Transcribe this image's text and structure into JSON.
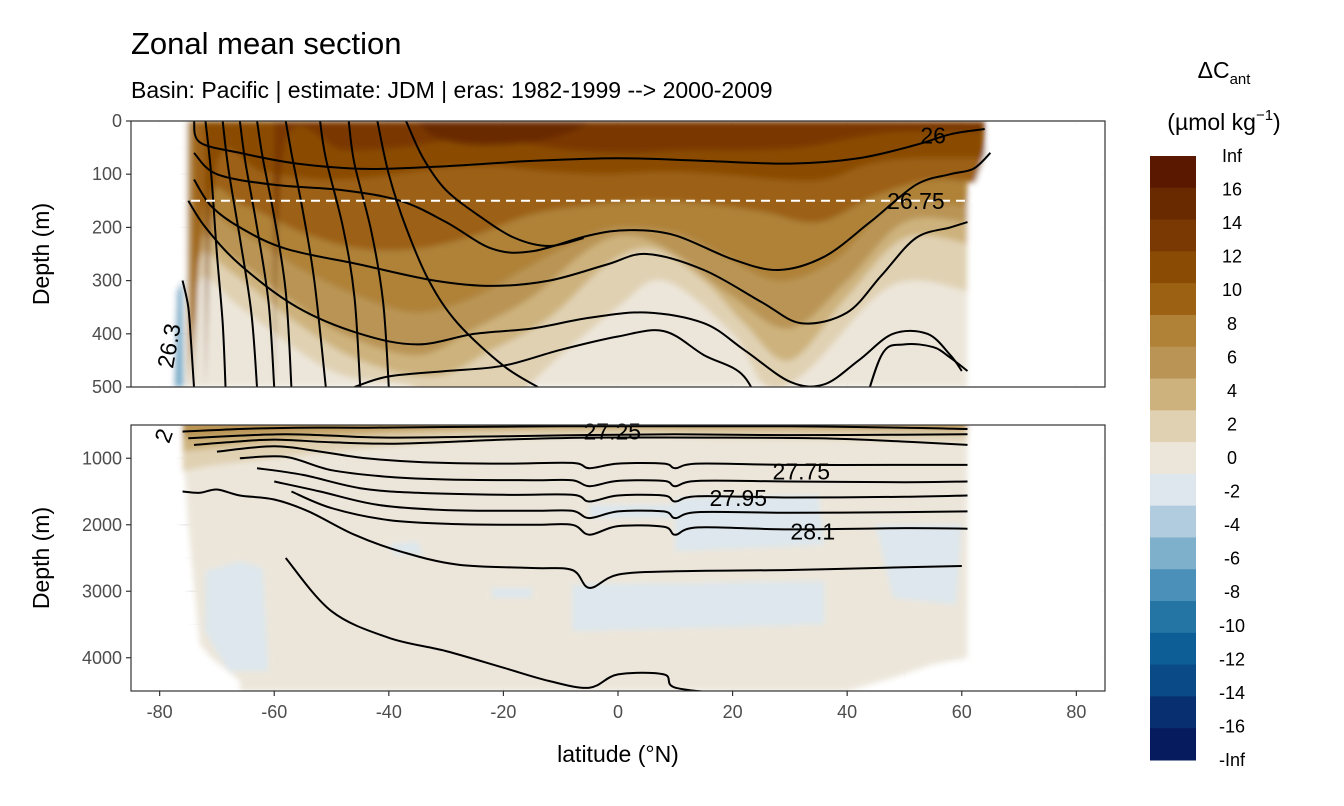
{
  "colors": {
    "pos": [
      "#ece6da",
      "#e0d1b2",
      "#cdb27d",
      "#b99454",
      "#af8237",
      "#9c6112",
      "#8a4c05",
      "#7a3802",
      "#6a2a00",
      "#5a1800"
    ],
    "neg": [
      "#dde7ed",
      "#b1ccdf",
      "#7fb0cb",
      "#4b90b8",
      "#2475a4",
      "#0d5d97",
      "#0a4a86",
      "#082f70",
      "#061b5e"
    ]
  },
  "chart_data": {
    "type": "heatmap",
    "title": "Zonal mean section",
    "subtitle": "Basin: Pacific | estimate: JDM  | eras: 1982-1999 --> 2000-2009",
    "xlabel": "latitude (°N)",
    "x_ticks": [
      "-80",
      "-60",
      "-40",
      "-20",
      "0",
      "20",
      "40",
      "60",
      "80"
    ],
    "xlim": [
      -85,
      85
    ],
    "upper_panel": {
      "ylabel": "Depth (m)",
      "ylim": [
        500,
        0
      ],
      "y_ticks": [
        "0",
        "100",
        "200",
        "300",
        "400",
        "500"
      ]
    },
    "lower_panel": {
      "ylabel": "Depth (m)",
      "ylim": [
        4500,
        500
      ],
      "y_ticks": [
        "1000",
        "2000",
        "3000",
        "4000"
      ]
    },
    "reference_depth": 150,
    "data_extent": {
      "lat_min": -78,
      "lat_max": 65
    },
    "legend": {
      "title_main": "ΔC",
      "title_sub": "ant",
      "units_pre": "(µmol kg",
      "units_sup": "−1",
      "units_post": ")",
      "labels": [
        "Inf",
        "16",
        "14",
        "12",
        "10",
        "8",
        "6",
        "4",
        "2",
        "0",
        "-2",
        "-4",
        "-6",
        "-8",
        "-10",
        "-12",
        "-14",
        "-16",
        "-Inf"
      ],
      "breaks": [
        16,
        14,
        12,
        10,
        8,
        6,
        4,
        2,
        0,
        -2,
        -4,
        -6,
        -8,
        -10,
        -12,
        -14,
        -16
      ]
    },
    "isopycnal_labels": [
      {
        "text": "26",
        "lat": 55,
        "depth": 27
      },
      {
        "text": "26.75",
        "lat": 52,
        "depth": 150
      },
      {
        "text": "26.3",
        "lat": -77,
        "depth": 410
      },
      {
        "text": "27.25",
        "lat": -1,
        "depth": 600
      },
      {
        "text": "27.75",
        "lat": 32,
        "depth": 1200
      },
      {
        "text": "27.95",
        "lat": 21,
        "depth": 1600
      },
      {
        "text": "28.1",
        "lat": 34,
        "depth": 2100
      },
      {
        "text": "2",
        "lat": -78,
        "depth": 580
      }
    ]
  }
}
